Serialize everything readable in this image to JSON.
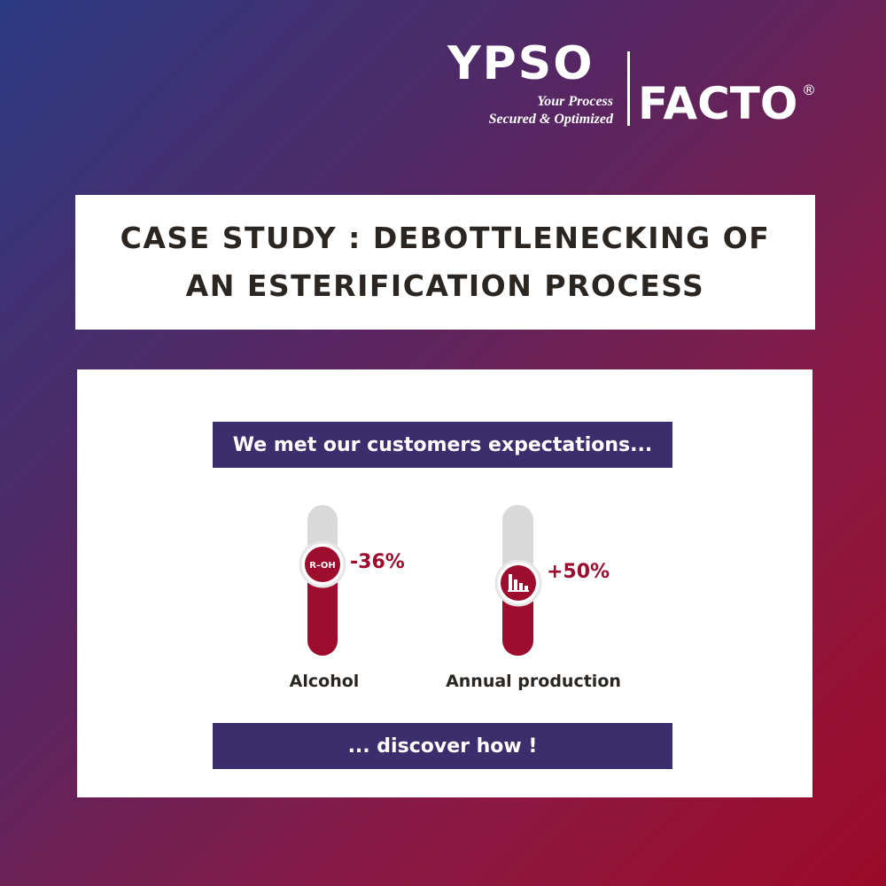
{
  "logo": {
    "ypso": "YPSO",
    "tagline_1": "Your Process",
    "tagline_2": "Secured & Optimized",
    "facto": "FACTO",
    "registered": "®"
  },
  "header": {
    "title": "CASE STUDY : DEBOTTLENECKING OF AN ESTERIFICATION PROCESS"
  },
  "card": {
    "banner": "We met our customers expectations...",
    "gauges": [
      {
        "icon": "R–OH",
        "change": "-36%",
        "label": "Alcohol"
      },
      {
        "change": "+50%",
        "label": "Annual production"
      }
    ],
    "cta": "... discover how !"
  }
}
